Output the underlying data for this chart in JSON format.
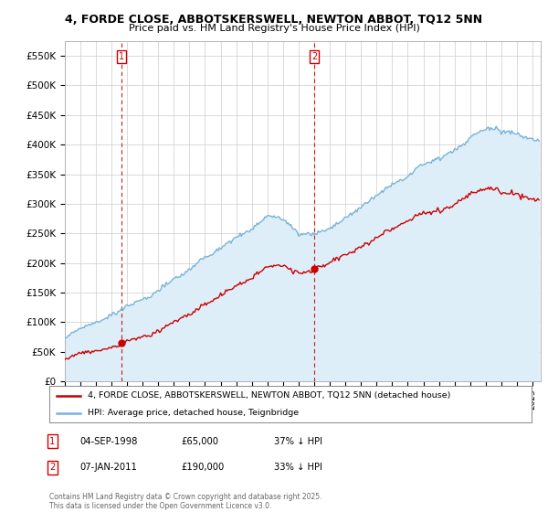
{
  "title_line1": "4, FORDE CLOSE, ABBOTSKERSWELL, NEWTON ABBOT, TQ12 5NN",
  "title_line2": "Price paid vs. HM Land Registry's House Price Index (HPI)",
  "xlim_start": 1995.0,
  "xlim_end": 2025.5,
  "ylim": [
    0,
    575000
  ],
  "yticks": [
    0,
    50000,
    100000,
    150000,
    200000,
    250000,
    300000,
    350000,
    400000,
    450000,
    500000,
    550000
  ],
  "ytick_labels": [
    "£0",
    "£50K",
    "£100K",
    "£150K",
    "£200K",
    "£250K",
    "£300K",
    "£350K",
    "£400K",
    "£450K",
    "£500K",
    "£550K"
  ],
  "grid_color": "#cccccc",
  "hpi_color": "#7ab3d9",
  "hpi_fill_color": "#ddeef8",
  "price_color": "#cc0000",
  "sale1_date": 1998.67,
  "sale1_price": 65000,
  "sale1_label": "1",
  "sale2_date": 2011.02,
  "sale2_price": 190000,
  "sale2_label": "2",
  "legend_line1": "4, FORDE CLOSE, ABBOTSKERSWELL, NEWTON ABBOT, TQ12 5NN (detached house)",
  "legend_line2": "HPI: Average price, detached house, Teignbridge",
  "annotation1_date": "04-SEP-1998",
  "annotation1_price": "£65,000",
  "annotation1_hpi": "37% ↓ HPI",
  "annotation2_date": "07-JAN-2011",
  "annotation2_price": "£190,000",
  "annotation2_hpi": "33% ↓ HPI",
  "footer": "Contains HM Land Registry data © Crown copyright and database right 2025.\nThis data is licensed under the Open Government Licence v3.0.",
  "bg_color": "#ffffff"
}
